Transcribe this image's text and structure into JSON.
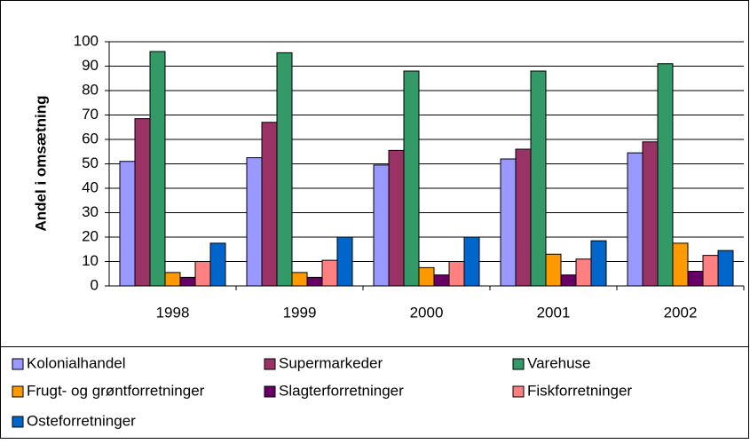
{
  "chart_data": {
    "type": "bar",
    "ylabel": "Andel i omsætning",
    "categories": [
      "1998",
      "1999",
      "2000",
      "2001",
      "2002"
    ],
    "series": [
      {
        "name": "Kolonialhandel",
        "color": "#9999ff",
        "values": [
          51,
          52.5,
          49.5,
          52,
          54.5
        ]
      },
      {
        "name": "Supermarkeder",
        "color": "#993366",
        "values": [
          68.5,
          67,
          55.5,
          56,
          59
        ]
      },
      {
        "name": "Varehuse",
        "color": "#339966",
        "values": [
          96,
          95.5,
          88,
          88,
          91
        ]
      },
      {
        "name": "Frugt- og grøntforretninger",
        "color": "#ff9900",
        "values": [
          5.5,
          5.5,
          7.5,
          13,
          17.5
        ]
      },
      {
        "name": "Slagterforretninger",
        "color": "#660066",
        "values": [
          3.5,
          3.5,
          4.5,
          4.5,
          6
        ]
      },
      {
        "name": "Fiskforretninger",
        "color": "#ff8080",
        "values": [
          10,
          10.5,
          10,
          11,
          12.5
        ]
      },
      {
        "name": "Osteforretninger",
        "color": "#0066cc",
        "values": [
          17.5,
          20,
          20,
          18.5,
          14.5
        ]
      }
    ],
    "ylim": [
      0,
      100
    ],
    "yticks": [
      0,
      10,
      20,
      30,
      40,
      50,
      60,
      70,
      80,
      90,
      100
    ],
    "grid": true,
    "legend": "bottom"
  }
}
